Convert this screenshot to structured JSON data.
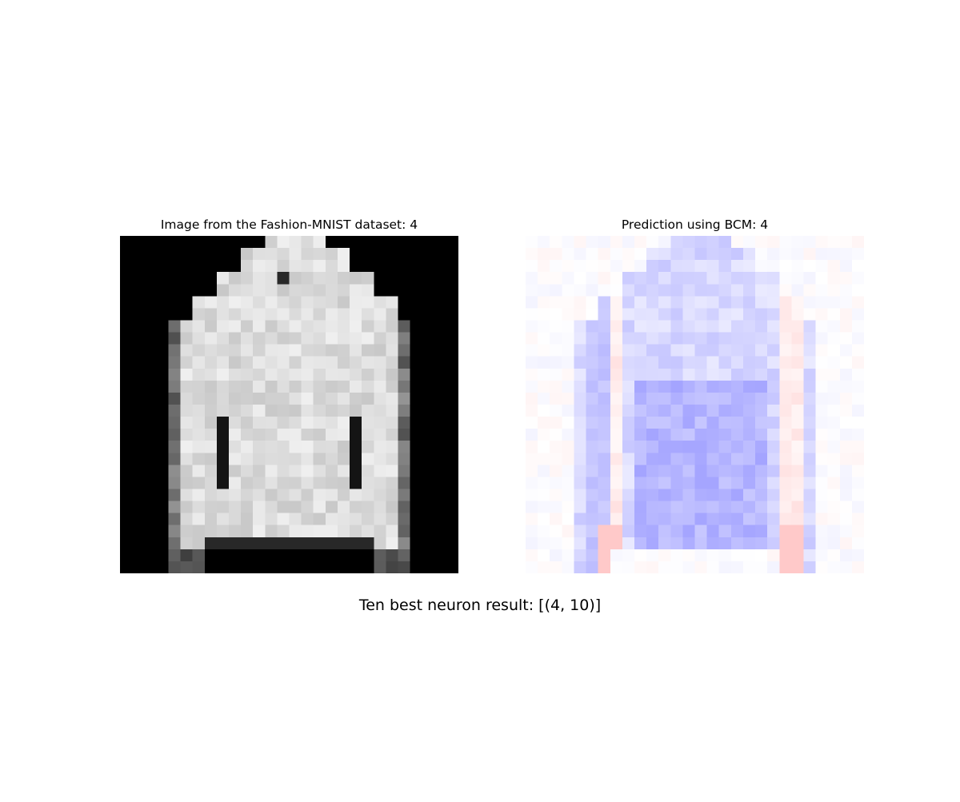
{
  "figure": {
    "left_title": "Image from the Fashion-MNIST dataset: 4",
    "right_title": "Prediction using BCM: 4",
    "caption": "Ten best neuron result: [(4, 10)]"
  },
  "images": {
    "left": {
      "description_icon": "grayscale-jacket-image",
      "background": "#000000",
      "foreground": "#dcdcdc"
    },
    "right": {
      "description_icon": "bcm-weight-heatmap",
      "positive_color": "#7f7fff",
      "negative_color": "#ffbfbf",
      "neutral_color": "#ffffff"
    }
  }
}
